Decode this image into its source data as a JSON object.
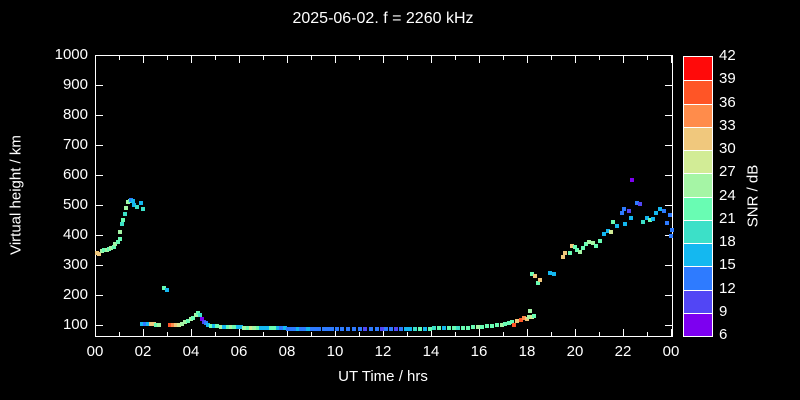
{
  "colors": {
    "background": "#000000",
    "foreground": "#ffffff"
  },
  "chart_data": {
    "type": "scatter",
    "title": "2025-06-02. f = 2260 kHz",
    "xlabel": "UT Time / hrs",
    "ylabel": "Virtual height / km",
    "grid": false,
    "xlim_hours": [
      0,
      24
    ],
    "ylim_km": [
      67,
      1000
    ],
    "x_tick_labels": [
      "00",
      "02",
      "04",
      "06",
      "08",
      "10",
      "12",
      "14",
      "16",
      "18",
      "20",
      "22",
      "00"
    ],
    "y_tick_values": [
      100,
      200,
      300,
      400,
      500,
      600,
      700,
      800,
      900,
      1000
    ],
    "colorbar": {
      "label": "SNR / dB",
      "position": "right",
      "range": [
        6,
        42
      ],
      "tick_values": [
        6,
        9,
        12,
        15,
        18,
        21,
        24,
        27,
        30,
        33,
        36,
        39,
        42
      ],
      "colors_low_to_high": [
        "#7d00f0",
        "#5246f5",
        "#2e7bff",
        "#14b8f0",
        "#3ce0c8",
        "#69fcb3",
        "#a5f5a5",
        "#d2ec96",
        "#f0c87d",
        "#ff8c4b",
        "#ff5526",
        "#ff0a0a"
      ]
    },
    "points_format": [
      "ut_hours",
      "virtual_height_km",
      "snr_db"
    ],
    "points": [
      [
        0.06,
        345,
        31
      ],
      [
        0.14,
        341,
        32
      ],
      [
        0.24,
        349,
        25
      ],
      [
        0.34,
        352,
        23
      ],
      [
        0.44,
        354,
        25
      ],
      [
        0.54,
        356,
        23
      ],
      [
        0.64,
        359,
        24
      ],
      [
        0.74,
        362,
        22
      ],
      [
        0.8,
        372,
        25
      ],
      [
        0.9,
        380,
        23
      ],
      [
        0.98,
        390,
        22
      ],
      [
        1.02,
        412,
        24
      ],
      [
        1.08,
        440,
        19
      ],
      [
        1.14,
        455,
        22
      ],
      [
        1.2,
        472,
        19
      ],
      [
        1.26,
        492,
        24
      ],
      [
        1.32,
        512,
        24
      ],
      [
        1.4,
        518,
        23
      ],
      [
        1.47,
        521,
        13
      ],
      [
        1.54,
        517,
        17
      ],
      [
        1.6,
        503,
        17
      ],
      [
        1.72,
        497,
        19
      ],
      [
        1.86,
        509,
        15
      ],
      [
        1.94,
        489,
        18
      ],
      [
        2.82,
        228,
        23
      ],
      [
        2.96,
        219,
        16
      ],
      [
        1.92,
        108,
        16
      ],
      [
        2.04,
        107,
        13
      ],
      [
        2.16,
        107,
        16
      ],
      [
        2.28,
        106,
        31
      ],
      [
        2.4,
        106,
        32
      ],
      [
        2.52,
        105,
        23
      ],
      [
        2.62,
        105,
        25
      ],
      [
        3.08,
        103,
        37
      ],
      [
        3.2,
        103,
        34
      ],
      [
        3.32,
        104,
        31
      ],
      [
        3.45,
        105,
        29
      ],
      [
        3.58,
        107,
        26
      ],
      [
        3.72,
        112,
        24
      ],
      [
        3.85,
        117,
        23
      ],
      [
        3.96,
        122,
        25
      ],
      [
        4.06,
        128,
        23
      ],
      [
        4.16,
        136,
        25
      ],
      [
        4.26,
        144,
        22
      ],
      [
        4.34,
        138,
        20
      ],
      [
        4.42,
        124,
        8
      ],
      [
        4.5,
        115,
        10
      ],
      [
        4.58,
        110,
        13
      ],
      [
        4.68,
        105,
        17
      ],
      [
        4.78,
        101,
        21
      ],
      [
        4.92,
        100,
        16
      ],
      [
        5.06,
        99,
        23
      ],
      [
        5.2,
        98,
        25
      ],
      [
        5.34,
        98,
        16
      ],
      [
        5.48,
        97,
        21
      ],
      [
        5.62,
        97,
        26
      ],
      [
        5.76,
        96,
        22
      ],
      [
        5.9,
        96,
        16
      ],
      [
        6.04,
        96,
        16
      ],
      [
        6.18,
        95,
        24
      ],
      [
        6.32,
        95,
        21
      ],
      [
        6.46,
        95,
        27
      ],
      [
        6.6,
        94,
        24
      ],
      [
        6.74,
        94,
        21
      ],
      [
        6.88,
        94,
        16
      ],
      [
        7.02,
        93,
        16
      ],
      [
        7.16,
        93,
        16
      ],
      [
        7.3,
        93,
        21
      ],
      [
        7.44,
        92,
        23
      ],
      [
        7.58,
        92,
        16
      ],
      [
        7.72,
        92,
        14
      ],
      [
        7.86,
        92,
        16
      ],
      [
        8.0,
        91,
        13
      ],
      [
        8.14,
        91,
        13
      ],
      [
        8.28,
        91,
        14
      ],
      [
        8.42,
        91,
        16
      ],
      [
        8.56,
        90,
        13
      ],
      [
        8.7,
        90,
        13
      ],
      [
        8.84,
        90,
        16
      ],
      [
        8.98,
        90,
        14
      ],
      [
        9.12,
        90,
        13
      ],
      [
        9.3,
        90,
        13
      ],
      [
        9.48,
        89,
        14
      ],
      [
        9.66,
        89,
        13
      ],
      [
        9.84,
        89,
        13
      ],
      [
        10.05,
        89,
        14
      ],
      [
        10.25,
        89,
        13
      ],
      [
        10.5,
        89,
        13
      ],
      [
        10.75,
        89,
        14
      ],
      [
        11.0,
        89,
        13
      ],
      [
        11.2,
        89,
        11
      ],
      [
        11.45,
        89,
        13
      ],
      [
        11.7,
        89,
        13
      ],
      [
        11.9,
        89,
        11
      ],
      [
        12.1,
        89,
        13
      ],
      [
        12.3,
        89,
        14
      ],
      [
        12.5,
        89,
        11
      ],
      [
        12.7,
        90,
        13
      ],
      [
        12.9,
        90,
        16
      ],
      [
        13.1,
        90,
        16
      ],
      [
        13.3,
        90,
        19
      ],
      [
        13.5,
        91,
        21
      ],
      [
        13.7,
        91,
        16
      ],
      [
        13.9,
        91,
        22
      ],
      [
        14.1,
        92,
        19
      ],
      [
        14.3,
        92,
        22
      ],
      [
        14.5,
        93,
        16
      ],
      [
        14.7,
        93,
        21
      ],
      [
        14.9,
        94,
        22
      ],
      [
        15.1,
        94,
        19
      ],
      [
        15.3,
        95,
        23
      ],
      [
        15.5,
        95,
        21
      ],
      [
        15.7,
        96,
        22
      ],
      [
        15.9,
        97,
        25
      ],
      [
        16.1,
        98,
        22
      ],
      [
        16.3,
        99,
        21
      ],
      [
        16.5,
        101,
        23
      ],
      [
        16.7,
        103,
        22
      ],
      [
        16.9,
        105,
        25
      ],
      [
        17.05,
        108,
        22
      ],
      [
        17.2,
        111,
        21
      ],
      [
        17.35,
        114,
        23
      ],
      [
        17.42,
        103,
        38
      ],
      [
        17.55,
        118,
        31
      ],
      [
        17.7,
        121,
        38
      ],
      [
        17.82,
        126,
        33
      ],
      [
        17.95,
        124,
        30
      ],
      [
        18.05,
        131,
        24
      ],
      [
        18.15,
        129,
        27
      ],
      [
        18.25,
        133,
        23
      ],
      [
        18.1,
        150,
        26
      ],
      [
        18.15,
        272,
        23
      ],
      [
        18.3,
        268,
        31
      ],
      [
        18.4,
        243,
        23
      ],
      [
        18.5,
        252,
        31
      ],
      [
        18.9,
        276,
        16
      ],
      [
        19.1,
        272,
        16
      ],
      [
        19.45,
        330,
        31
      ],
      [
        19.55,
        345,
        30
      ],
      [
        19.75,
        342,
        23
      ],
      [
        19.85,
        368,
        31
      ],
      [
        19.95,
        365,
        23
      ],
      [
        20.05,
        352,
        23
      ],
      [
        20.15,
        348,
        25
      ],
      [
        20.3,
        360,
        22
      ],
      [
        20.4,
        374,
        23
      ],
      [
        20.55,
        381,
        25
      ],
      [
        20.7,
        376,
        26
      ],
      [
        20.85,
        368,
        23
      ],
      [
        21.0,
        385,
        22
      ],
      [
        21.15,
        407,
        16
      ],
      [
        21.35,
        417,
        16
      ],
      [
        21.45,
        412,
        27
      ],
      [
        21.55,
        448,
        23
      ],
      [
        21.7,
        432,
        16
      ],
      [
        21.9,
        478,
        14
      ],
      [
        22.0,
        490,
        13
      ],
      [
        22.05,
        440,
        16
      ],
      [
        22.2,
        483,
        11
      ],
      [
        22.35,
        587,
        8
      ],
      [
        22.55,
        510,
        13
      ],
      [
        22.65,
        507,
        9
      ],
      [
        22.3,
        460,
        16
      ],
      [
        22.8,
        448,
        19
      ],
      [
        22.95,
        460,
        16
      ],
      [
        23.1,
        455,
        23
      ],
      [
        23.2,
        458,
        16
      ],
      [
        23.35,
        477,
        16
      ],
      [
        23.5,
        490,
        16
      ],
      [
        23.65,
        483,
        13
      ],
      [
        23.8,
        443,
        13
      ],
      [
        23.9,
        470,
        14
      ],
      [
        23.95,
        400,
        13
      ],
      [
        24.0,
        420,
        13
      ]
    ]
  }
}
